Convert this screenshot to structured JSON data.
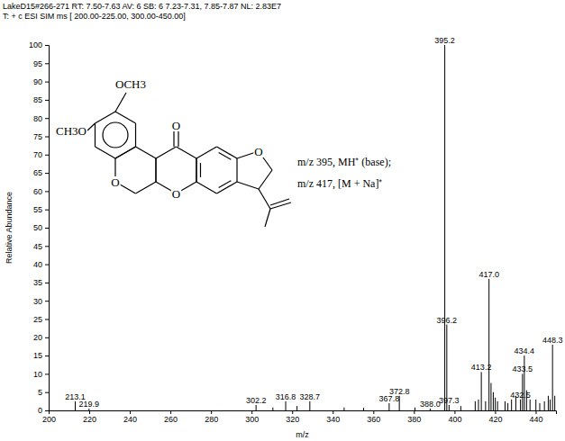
{
  "chart_data": {
    "type": "stem",
    "title": "LakeD15#266-271  RT: 7.50-7.63  AV: 6  SB: 6  7.23-7.31, 7.85-7.87  NL: 2.83E7",
    "subtitle": "T: + c ESI SIM ms [ 200.00-225.00, 300.00-450.00]",
    "x_label": "m/z",
    "y_label": "Relative Abundance",
    "color": "#000000",
    "x": [
      213.1,
      219.9,
      302.2,
      310.5,
      316.8,
      322.4,
      328.7,
      345.6,
      355.2,
      367.8,
      372.8,
      380.5,
      388.0,
      395.2,
      396.2,
      397.3,
      403.1,
      410.2,
      411.8,
      413.2,
      415.3,
      417.0,
      418.0,
      419.1,
      420.1,
      421.2,
      424.9,
      426.3,
      428.1,
      430.2,
      432.5,
      433.5,
      434.4,
      435.5,
      437.2,
      440.1,
      442.0,
      444.3,
      446.2,
      447.1,
      448.3,
      449.4
    ],
    "values": [
      2.5,
      0.5,
      1.5,
      0.8,
      2.5,
      1.2,
      2.5,
      0.8,
      0.7,
      2,
      4,
      0.8,
      0.5,
      100,
      23.5,
      1.5,
      1.2,
      2.5,
      3,
      10.5,
      2.5,
      36,
      7.5,
      5,
      3.5,
      2.5,
      2.5,
      2,
      3,
      4,
      3,
      10,
      15,
      5.5,
      3,
      3,
      2,
      2.5,
      4,
      3,
      18,
      4
    ],
    "x_labels": [
      "213.1",
      "219.9",
      "302.2",
      null,
      "316.8",
      null,
      "328.7",
      null,
      null,
      "367.8",
      "372.8",
      null,
      "388.0",
      "395.2",
      "396.2",
      "397.3",
      null,
      null,
      null,
      "413.2",
      null,
      "417.0",
      null,
      null,
      null,
      null,
      null,
      null,
      null,
      null,
      "432.5",
      "433.5",
      "434.4",
      null,
      null,
      null,
      null,
      null,
      null,
      null,
      "448.3",
      null
    ],
    "xlim": [
      200,
      450
    ],
    "ylim": [
      0,
      100
    ],
    "xticks": [
      200,
      220,
      240,
      260,
      280,
      300,
      320,
      340,
      360,
      380,
      400,
      420,
      440
    ],
    "yticks": [
      0,
      5,
      10,
      15,
      20,
      25,
      30,
      35,
      40,
      45,
      50,
      55,
      60,
      65,
      70,
      75,
      80,
      85,
      90,
      95,
      100
    ],
    "annotations": [
      "m/z 395, MH⁺ (base);",
      "m/z 417, [M + Na]⁺"
    ],
    "structure_labels": [
      "OCH3",
      "CH3O",
      "O",
      "O",
      "O",
      "O"
    ]
  }
}
